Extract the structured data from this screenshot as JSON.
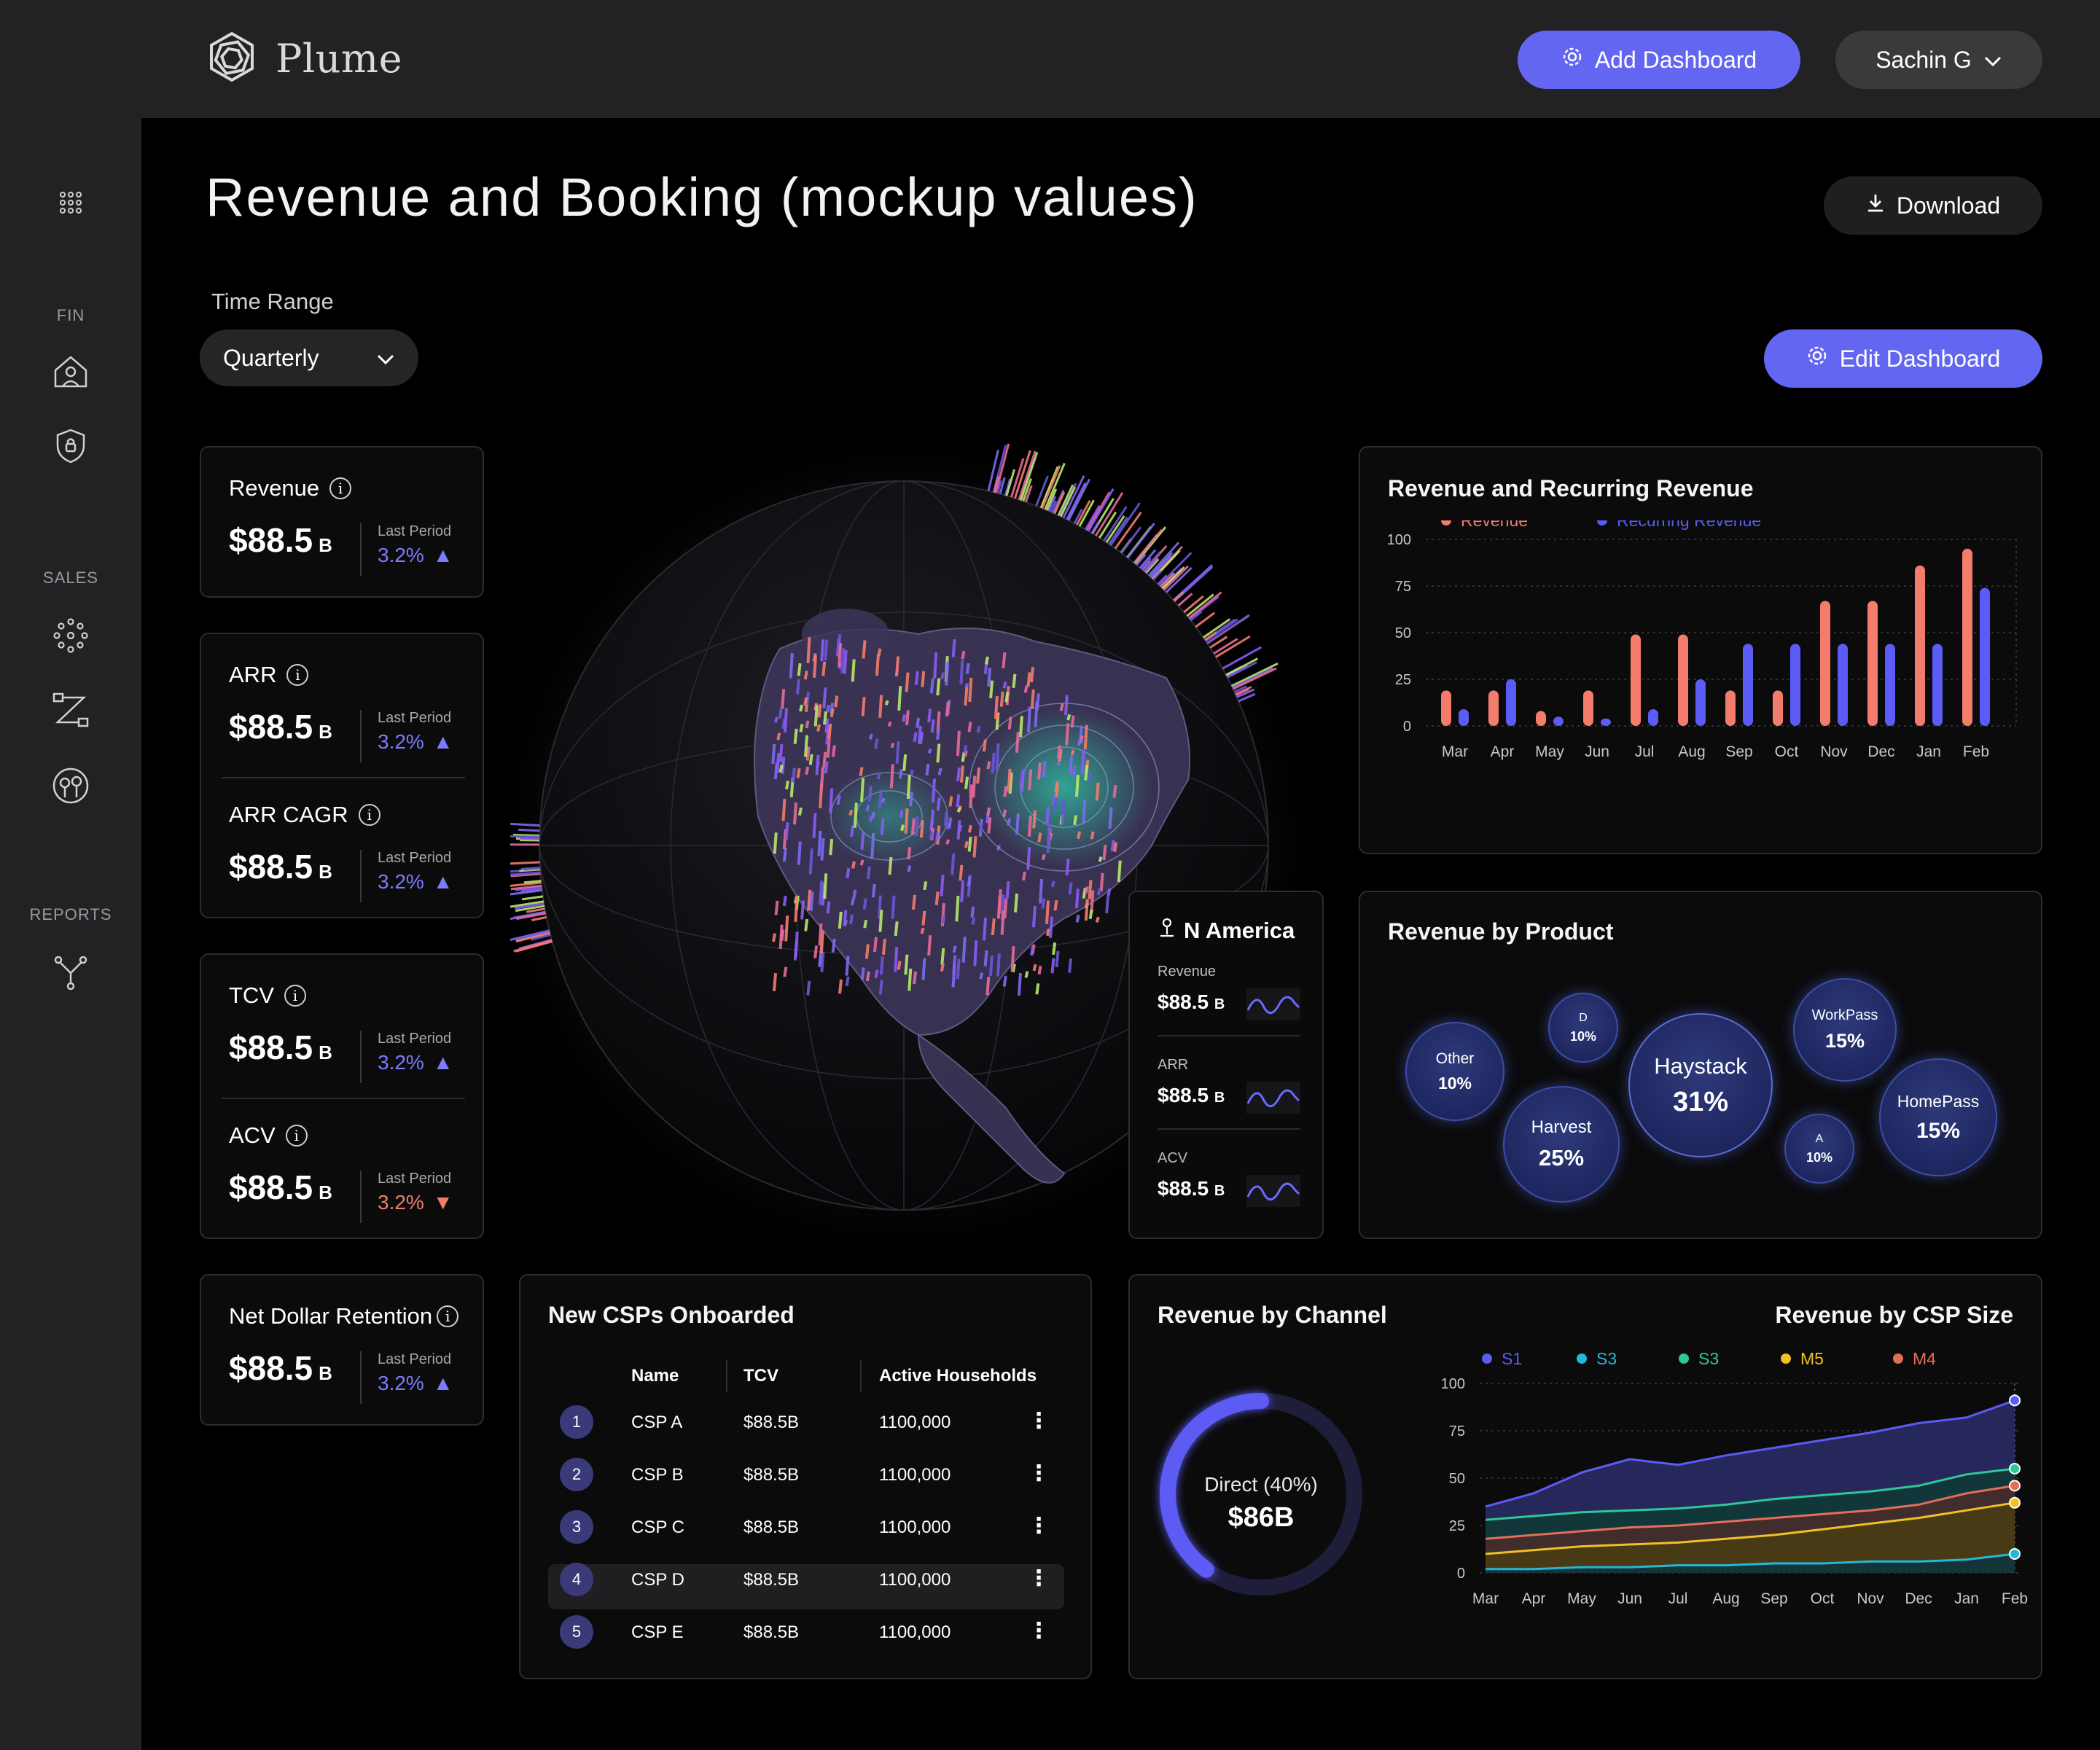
{
  "app": {
    "name": "Plume"
  },
  "header": {
    "add_dashboard": "Add Dashboard",
    "user": "Sachin G"
  },
  "sidebar": {
    "sections": [
      "FIN",
      "SALES",
      "REPORTS"
    ]
  },
  "page": {
    "title": "Revenue and Booking (mockup values)",
    "download": "Download",
    "edit_dashboard": "Edit Dashboard",
    "time_range_label": "Time Range",
    "time_range_value": "Quarterly"
  },
  "kpis": {
    "last_period_label": "Last Period",
    "revenue": {
      "title": "Revenue",
      "value": "$88.5",
      "unit": "B",
      "pct": "3.2%"
    },
    "arr": {
      "title": "ARR",
      "value": "$88.5",
      "unit": "B",
      "pct": "3.2%"
    },
    "arr_cagr": {
      "title": "ARR CAGR",
      "value": "$88.5",
      "unit": "B",
      "pct": "3.2%"
    },
    "tcv": {
      "title": "TCV",
      "value": "$88.5",
      "unit": "B",
      "pct": "3.2%"
    },
    "acv": {
      "title": "ACV",
      "value": "$88.5",
      "unit": "B",
      "pct": "3.2%"
    },
    "ndr": {
      "title": "Net Dollar Retention",
      "value": "$88.5",
      "unit": "B",
      "pct": "3.2%"
    }
  },
  "region": {
    "name": "N America",
    "rows": [
      {
        "label": "Revenue",
        "value": "$88.5",
        "unit": "B"
      },
      {
        "label": "ARR",
        "value": "$88.5",
        "unit": "B"
      },
      {
        "label": "ACV",
        "value": "$88.5",
        "unit": "B"
      }
    ]
  },
  "product": {
    "title": "Revenue by Product",
    "bubbles": [
      {
        "name": "Other",
        "pct": "10%"
      },
      {
        "name": "D",
        "pct": "10%"
      },
      {
        "name": "Harvest",
        "pct": "25%"
      },
      {
        "name": "Haystack",
        "pct": "31%"
      },
      {
        "name": "WorkPass",
        "pct": "15%"
      },
      {
        "name": "A",
        "pct": "10%"
      },
      {
        "name": "HomePass",
        "pct": "15%"
      }
    ]
  },
  "csps": {
    "title": "New CSPs Onboarded",
    "headers": [
      "Name",
      "TCV",
      "Active Households"
    ],
    "rows": [
      {
        "rank": "1",
        "name": "CSP A",
        "tcv": "$88.5B",
        "hh": "1100,000"
      },
      {
        "rank": "2",
        "name": "CSP B",
        "tcv": "$88.5B",
        "hh": "1100,000"
      },
      {
        "rank": "3",
        "name": "CSP C",
        "tcv": "$88.5B",
        "hh": "1100,000"
      },
      {
        "rank": "4",
        "name": "CSP D",
        "tcv": "$88.5B",
        "hh": "1100,000"
      },
      {
        "rank": "5",
        "name": "CSP E",
        "tcv": "$88.5B",
        "hh": "1100,000"
      }
    ]
  },
  "channel": {
    "title": "Revenue by Channel",
    "label": "Direct (40%)",
    "value": "$86B",
    "fraction": 0.4
  },
  "colors": {
    "accent": "#6366f1",
    "revenue": "#f47c6c",
    "recurring": "#5b5bf5",
    "s1": "#5b5bf5",
    "s3a": "#22b8d6",
    "s3b": "#2fc79a",
    "m5": "#f2c024",
    "m4": "#e36e5a"
  },
  "chart_data": [
    {
      "type": "bar",
      "title": "Revenue and Recurring Revenue",
      "categories": [
        "Mar",
        "Apr",
        "May",
        "Jun",
        "Jul",
        "Aug",
        "Sep",
        "Oct",
        "Nov",
        "Dec",
        "Jan",
        "Feb"
      ],
      "series": [
        {
          "name": "Revenue",
          "values": [
            19,
            19,
            8,
            19,
            49,
            49,
            19,
            19,
            67,
            67,
            86,
            95
          ]
        },
        {
          "name": "Recurring Revenue",
          "values": [
            9,
            25,
            5,
            4,
            9,
            25,
            44,
            44,
            44,
            44,
            44,
            74
          ]
        }
      ],
      "yticks": [
        0,
        25,
        50,
        75,
        100
      ],
      "ylim": [
        0,
        100
      ],
      "legend": "top-left",
      "grid": true
    },
    {
      "type": "area",
      "title": "Revenue by CSP Size",
      "categories": [
        "Mar",
        "Apr",
        "May",
        "Jun",
        "Jul",
        "Aug",
        "Sep",
        "Oct",
        "Nov",
        "Dec",
        "Jan",
        "Feb"
      ],
      "series": [
        {
          "name": "S1",
          "values": [
            35,
            42,
            53,
            60,
            57,
            62,
            66,
            70,
            74,
            79,
            82,
            91
          ]
        },
        {
          "name": "S3",
          "values": [
            2,
            2,
            3,
            3,
            4,
            4,
            5,
            5,
            6,
            6,
            7,
            10
          ]
        },
        {
          "name": "S3",
          "values": [
            28,
            30,
            32,
            33,
            34,
            36,
            39,
            41,
            43,
            46,
            52,
            55
          ]
        },
        {
          "name": "M5",
          "values": [
            10,
            12,
            14,
            15,
            16,
            18,
            20,
            23,
            26,
            29,
            33,
            37
          ]
        },
        {
          "name": "M4",
          "values": [
            18,
            20,
            22,
            24,
            25,
            27,
            29,
            31,
            33,
            36,
            42,
            46
          ]
        }
      ],
      "yticks": [
        0,
        25,
        50,
        75,
        100
      ],
      "ylim": [
        0,
        100
      ],
      "legend": "top",
      "grid": true
    }
  ]
}
